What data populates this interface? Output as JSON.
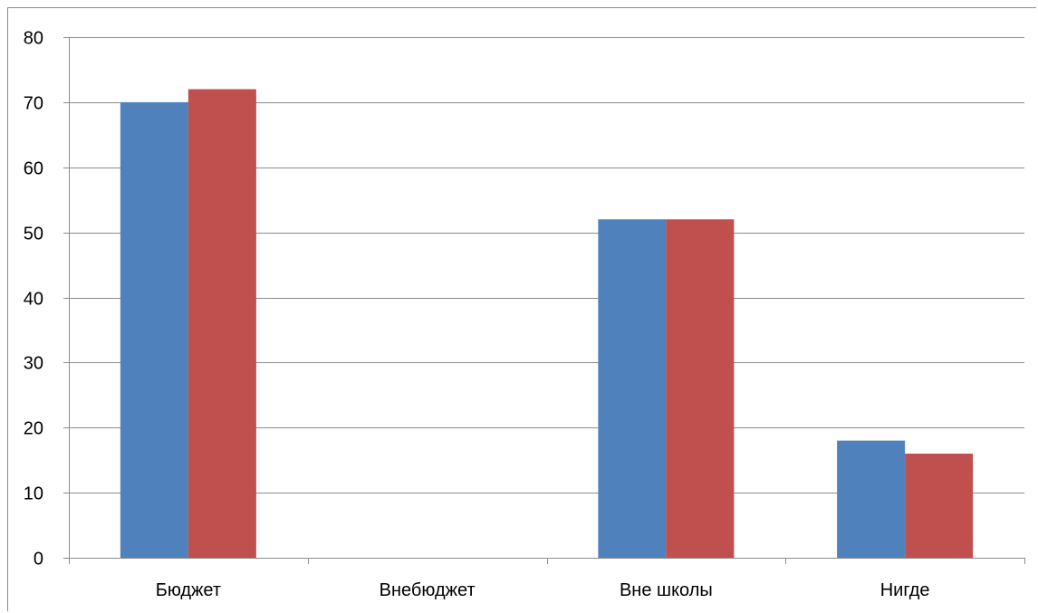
{
  "chart_data": {
    "type": "bar",
    "title": "",
    "xlabel": "",
    "ylabel": "",
    "categories": [
      "Бюджет",
      "Внебюджет",
      "Вне школы",
      "Нигде"
    ],
    "series": [
      {
        "values": [
          70,
          0,
          52,
          18
        ],
        "color": "#4F81BD"
      },
      {
        "values": [
          72,
          0,
          52,
          16
        ],
        "color": "#C0504D"
      }
    ],
    "ylim": [
      0,
      80
    ],
    "y_ticks": [
      0,
      10,
      20,
      30,
      40,
      50,
      60,
      70,
      80
    ],
    "grid": true,
    "legend": "none"
  }
}
